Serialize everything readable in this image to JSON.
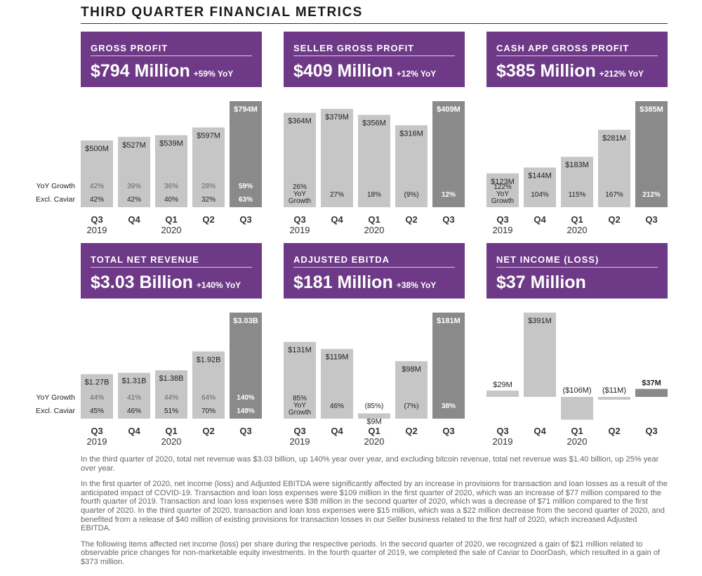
{
  "page_title": "THIRD QUARTER FINANCIAL METRICS",
  "row_labels": {
    "yoy": "YoY Growth",
    "excl": "Excl. Caviar"
  },
  "footnotes": [
    "In the third quarter of 2020, total net revenue was $3.03 billion, up 140% year over year, and excluding bitcoin revenue, total net revenue was $1.40 billion, up 25% year over year.",
    "In the first quarter of 2020, net income (loss) and Adjusted EBITDA were significantly affected by an increase in provisions for transaction and loan losses as a result of the anticipated impact of COVID-19. Transaction and loan loss expenses were $109 million in the first quarter of 2020, which was an increase of $77 million compared to the fourth quarter of 2019. Transaction and loan loss expenses were $38 million in the second quarter of 2020, which was a decrease of $71 million compared to the first quarter of 2020. In the third quarter of 2020, transaction and loan loss expenses were $15 million, which was a $22 million decrease from the second quarter of 2020, and benefited from a release of $40 million of existing provisions for transaction losses in our Seller business related to the first half of 2020, which increased Adjusted EBITDA.",
    "The following items affected net income (loss) per share during the respective periods. In the second quarter of 2020, we recognized a gain of $21 million related to observable price changes for non-marketable equity investments. In the fourth quarter of 2019, we completed the sale of Caviar to DoorDash, which resulted in a gain of $373 million."
  ],
  "colors": {
    "banner": "#6e3a87",
    "bar": "#c6c6c6",
    "bar_current": "#8a8a8a"
  },
  "chart_data": [
    {
      "type": "bar",
      "banner_title": "GROSS PROFIT",
      "headline": "$794 Million",
      "headline_yoy": "+59% YoY",
      "categories": [
        "Q3",
        "Q4",
        "Q1",
        "Q2",
        "Q3"
      ],
      "year_labels": [
        "2019",
        "",
        "2020",
        "",
        ""
      ],
      "unit": "$M",
      "values": [
        500,
        527,
        539,
        597,
        794
      ],
      "value_labels": [
        "$500M",
        "$527M",
        "$539M",
        "$597M",
        "$794M"
      ],
      "yoy_growth": [
        "42%",
        "39%",
        "36%",
        "28%",
        "59%"
      ],
      "excl_caviar": [
        "42%",
        "42%",
        "40%",
        "32%",
        "63%"
      ],
      "ylim": [
        0,
        794
      ]
    },
    {
      "type": "bar",
      "banner_title": "SELLER GROSS PROFIT",
      "headline": "$409 Million",
      "headline_yoy": "+12% YoY",
      "categories": [
        "Q3",
        "Q4",
        "Q1",
        "Q2",
        "Q3"
      ],
      "year_labels": [
        "2019",
        "",
        "2020",
        "",
        ""
      ],
      "unit": "$M",
      "values": [
        364,
        379,
        356,
        316,
        409
      ],
      "value_labels": [
        "$364M",
        "$379M",
        "$356M",
        "$316M",
        "$409M"
      ],
      "growth_labels": [
        [
          "26%",
          "YoY",
          "Growth"
        ],
        [
          "27%"
        ],
        [
          "18%"
        ],
        [
          "(9%)"
        ],
        [
          "12%"
        ]
      ],
      "ylim": [
        0,
        409
      ]
    },
    {
      "type": "bar",
      "banner_title": "CASH APP GROSS PROFIT",
      "headline": "$385 Million",
      "headline_yoy": "+212% YoY",
      "categories": [
        "Q3",
        "Q4",
        "Q1",
        "Q2",
        "Q3"
      ],
      "year_labels": [
        "2019",
        "",
        "2020",
        "",
        ""
      ],
      "unit": "$M",
      "values": [
        123,
        144,
        183,
        281,
        385
      ],
      "value_labels": [
        "$123M",
        "$144M",
        "$183M",
        "$281M",
        "$385M"
      ],
      "growth_labels": [
        [
          "122%",
          "YoY",
          "Growth"
        ],
        [
          "104%"
        ],
        [
          "115%"
        ],
        [
          "167%"
        ],
        [
          "212%"
        ]
      ],
      "ylim": [
        0,
        385
      ]
    },
    {
      "type": "bar",
      "banner_title": "TOTAL NET REVENUE",
      "headline": "$3.03 Billion",
      "headline_yoy": "+140% YoY",
      "categories": [
        "Q3",
        "Q4",
        "Q1",
        "Q2",
        "Q3"
      ],
      "year_labels": [
        "2019",
        "",
        "2020",
        "",
        ""
      ],
      "unit": "$B",
      "values": [
        1.27,
        1.31,
        1.38,
        1.92,
        3.03
      ],
      "value_labels": [
        "$1.27B",
        "$1.31B",
        "$1.38B",
        "$1.92B",
        "$3.03B"
      ],
      "yoy_growth": [
        "44%",
        "41%",
        "44%",
        "64%",
        "140%"
      ],
      "excl_caviar": [
        "45%",
        "46%",
        "51%",
        "70%",
        "148%"
      ],
      "ylim": [
        0,
        3.03
      ]
    },
    {
      "type": "bar",
      "banner_title": "ADJUSTED EBITDA",
      "headline": "$181 Million",
      "headline_yoy": "+38% YoY",
      "categories": [
        "Q3",
        "Q4",
        "Q1",
        "Q2",
        "Q3"
      ],
      "year_labels": [
        "2019",
        "",
        "2020",
        "",
        ""
      ],
      "unit": "$M",
      "values": [
        131,
        119,
        9,
        98,
        181
      ],
      "value_labels": [
        "$131M",
        "$119M",
        "$9M",
        "$98M",
        "$181M"
      ],
      "growth_labels": [
        [
          "85%",
          "YoY",
          "Growth"
        ],
        [
          "46%"
        ],
        [
          "(85%)"
        ],
        [
          "(7%)"
        ],
        [
          "38%"
        ]
      ],
      "ylim": [
        0,
        181
      ]
    },
    {
      "type": "bar",
      "banner_title": "NET INCOME (LOSS)",
      "headline": "$37 Million",
      "headline_yoy": "",
      "categories": [
        "Q3",
        "Q4",
        "Q1",
        "Q2",
        "Q3"
      ],
      "year_labels": [
        "2019",
        "",
        "2020",
        "",
        ""
      ],
      "unit": "$M",
      "values": [
        29,
        391,
        -106,
        -11,
        37
      ],
      "value_labels": [
        "$29M",
        "$391M",
        "($106M)",
        "($11M)",
        "$37M"
      ],
      "ylim": [
        -106,
        391
      ]
    }
  ]
}
